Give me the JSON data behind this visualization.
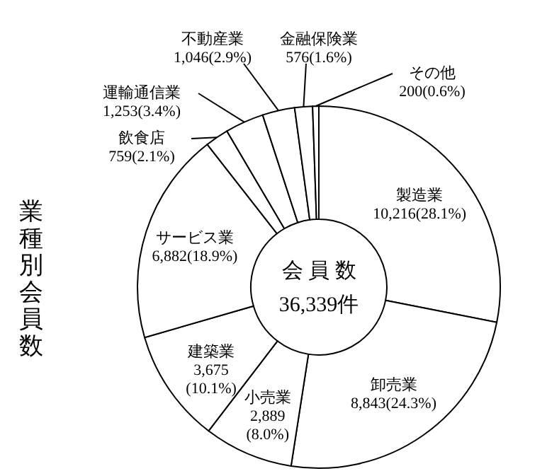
{
  "chart_data": {
    "type": "donut",
    "title": "業種別会員数",
    "categories": [
      "製造業",
      "卸売業",
      "小売業",
      "建築業",
      "サービス業",
      "飲食店",
      "運輸通信業",
      "不動産業",
      "金融保険業",
      "その他"
    ],
    "values": [
      10216,
      8843,
      2889,
      3675,
      6882,
      759,
      1253,
      1046,
      576,
      200
    ],
    "value_labels": [
      "10,216(28.1%)",
      "8,843(24.3%)",
      "2,889(8.0%)",
      "3,675(10.1%)",
      "6,882(18.9%)",
      "759(2.1%)",
      "1,253(3.4%)",
      "1,046(2.9%)",
      "576(1.6%)",
      "200(0.6%)"
    ],
    "colors": [
      "#ffffff",
      "#ffffff",
      "#ffffff",
      "#ffffff",
      "#ffffff",
      "#ffffff",
      "#ffffff",
      "#ffffff",
      "#ffffff",
      "#ffffff"
    ],
    "annotations": [
      "会 員 数",
      "36,339件"
    ]
  }
}
